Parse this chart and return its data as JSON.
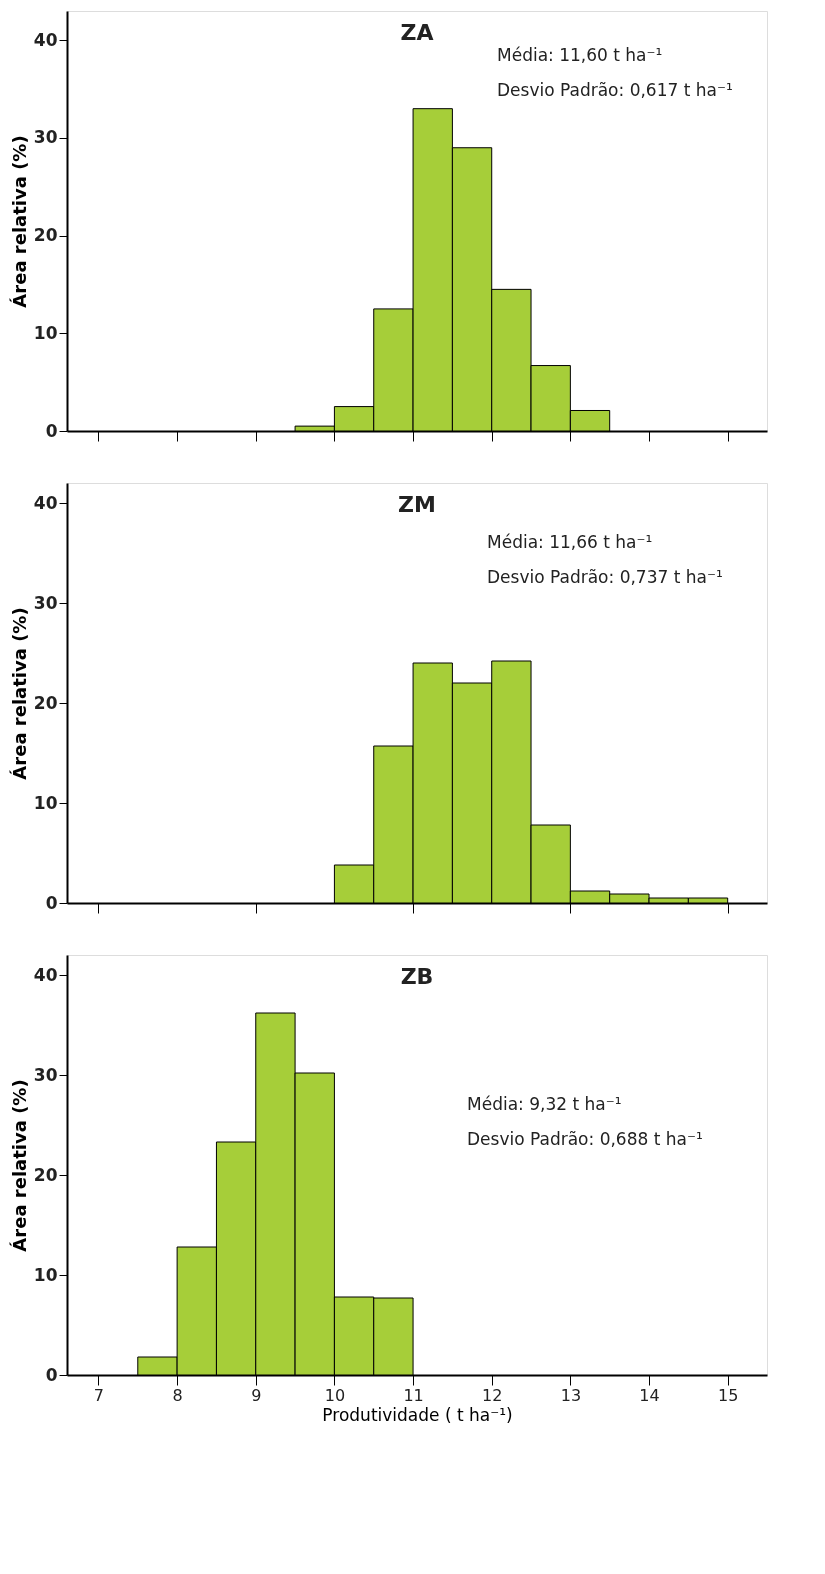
{
  "chart_data": [
    {
      "type": "histogram",
      "title": "ZA",
      "ylabel": "Área relativa (%)",
      "bins": [
        9.5,
        10,
        10.5,
        11,
        11.5,
        12,
        12.5,
        13,
        13.5
      ],
      "values": [
        0.5,
        2.5,
        12.5,
        33,
        29,
        14.5,
        6.7,
        2.1
      ],
      "color": "#a6ce39",
      "xlim": [
        6.6,
        15.5
      ],
      "xticks": [
        {
          "value": 7,
          "label": null
        },
        {
          "value": 8,
          "label": null
        },
        {
          "value": 9,
          "label": null
        },
        {
          "value": 10,
          "label": null
        },
        {
          "value": 11,
          "label": null
        },
        {
          "value": 12,
          "label": null
        },
        {
          "value": 13,
          "label": null
        },
        {
          "value": 14,
          "label": null
        },
        {
          "value": 15,
          "label": null
        }
      ],
      "ylim": [
        0,
        43
      ],
      "yticks": [
        0,
        10,
        20,
        30,
        40
      ],
      "tick_labels": "y",
      "grid": false,
      "annotations": [
        "Média: 11,60 t ha⁻¹",
        "Desvio Padrão: 0,617 t ha⁻¹"
      ]
    },
    {
      "type": "histogram",
      "title": "ZM",
      "ylabel": "Área relativa (%)",
      "bins": [
        10,
        10.5,
        11,
        11.5,
        12,
        12.5,
        13,
        13.5,
        14,
        14.5,
        15
      ],
      "values": [
        3.8,
        15.7,
        24,
        22,
        24.2,
        7.8,
        1.2,
        0.9,
        0.5,
        0.5
      ],
      "color": "#a6ce39",
      "xlim": [
        6.6,
        15.5
      ],
      "xticks": [
        {
          "value": 7,
          "label": null
        },
        {
          "value": 9,
          "label": null
        },
        {
          "value": 11,
          "label": null
        },
        {
          "value": 13,
          "label": null
        },
        {
          "value": 15,
          "label": null
        }
      ],
      "ylim": [
        0,
        42
      ],
      "yticks": [
        0,
        10,
        20,
        30,
        40
      ],
      "tick_labels": "y",
      "grid": false,
      "annotations": [
        "Média: 11,66 t ha⁻¹",
        "Desvio Padrão: 0,737 t ha⁻¹"
      ]
    },
    {
      "type": "histogram",
      "title": "ZB",
      "ylabel": "Área relativa (%)",
      "xlabel": "Produtividade ( t ha⁻¹)",
      "bins": [
        7.5,
        8,
        8.5,
        9,
        9.5,
        10,
        10.5,
        11
      ],
      "values": [
        1.8,
        12.8,
        23.3,
        36.2,
        30.2,
        7.8,
        7.7
      ],
      "color": "#a6ce39",
      "xlim": [
        6.6,
        15.5
      ],
      "xticks": [
        7,
        8,
        9,
        10,
        11,
        12,
        13,
        14,
        15
      ],
      "ylim": [
        0,
        42
      ],
      "yticks": [
        0,
        10,
        20,
        30,
        40
      ],
      "grid": false,
      "annotations": [
        "Média: 9,32 t ha⁻¹",
        "Desvio Padrão: 0,688 t ha⁻¹"
      ]
    }
  ]
}
